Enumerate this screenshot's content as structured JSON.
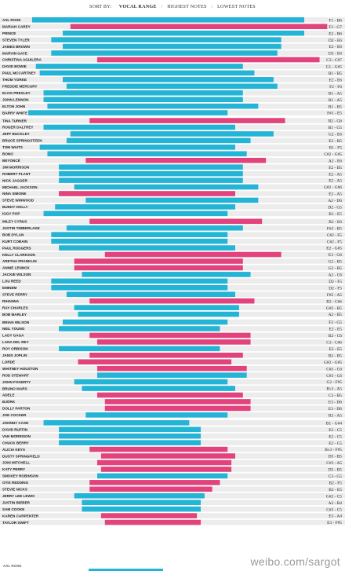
{
  "sort_bar": {
    "prefix": "SORT BY:",
    "options": [
      "VOCAL RANGE",
      "HIGHEST NOTES",
      "LOWEST NOTES"
    ],
    "active": "VOCAL RANGE"
  },
  "colors": {
    "male": "#23b4d6",
    "female": "#e2437c",
    "stripe": "#ececec"
  },
  "watermark": "weibo.com/sargot",
  "footnote": "AXL ROSE",
  "chart_data": {
    "type": "bar",
    "orientation": "horizontal-range",
    "note_axis": [
      "A1",
      "B1",
      "C2",
      "D2",
      "E2",
      "F2",
      "G2",
      "A2",
      "B2",
      "C3",
      "D3",
      "E3",
      "F3",
      "G3",
      "A3",
      "B3",
      "C4",
      "D4",
      "E4",
      "F4",
      "G4",
      "A4",
      "B4",
      "C5",
      "D5",
      "E5",
      "F5",
      "G5",
      "A5",
      "B5",
      "C6",
      "D6",
      "E6",
      "F6",
      "G6",
      "A6",
      "B6"
    ],
    "singers": [
      {
        "name": "AXL ROSE",
        "range": "F1 - B6",
        "low": 0.5,
        "high": 36,
        "sex": "m"
      },
      {
        "name": "MARIAH CAREY",
        "range": "F2 - G7",
        "low": 5.5,
        "high": 39,
        "sex": "f"
      },
      {
        "name": "PRINCE",
        "range": "E2 - B6",
        "low": 4.5,
        "high": 36,
        "sex": "m"
      },
      {
        "name": "STEVEN TYLER",
        "range": "D2 - E6",
        "low": 3,
        "high": 33,
        "sex": "m"
      },
      {
        "name": "JAMES BROWN",
        "range": "E2 - E6",
        "low": 4.5,
        "high": 33,
        "sex": "m"
      },
      {
        "name": "MARVIN GAYE",
        "range": "D2 - E6",
        "low": 3,
        "high": 32.5,
        "sex": "m"
      },
      {
        "name": "CHRISTINA AGUILERA",
        "range": "C3 - C#7",
        "low": 9,
        "high": 38,
        "sex": "f"
      },
      {
        "name": "DAVID BOWIE",
        "range": "G1 - G#5",
        "low": 1,
        "high": 28,
        "sex": "m"
      },
      {
        "name": "PAUL MCCARTNEY",
        "range": "B1 - B5",
        "low": 1.5,
        "high": 29.5,
        "sex": "m"
      },
      {
        "name": "THOM YORKE",
        "range": "E2 - E6",
        "low": 4.5,
        "high": 32,
        "sex": "m"
      },
      {
        "name": "FREDDIE MERCURY",
        "range": "F2 - F6",
        "low": 5,
        "high": 32.5,
        "sex": "m"
      },
      {
        "name": "ELVIS PRESLEY",
        "range": "B1 - A5",
        "low": 2,
        "high": 28,
        "sex": "m"
      },
      {
        "name": "JOHN LENNON",
        "range": "B1 - A5",
        "low": 2,
        "high": 28,
        "sex": "m"
      },
      {
        "name": "ELTON JOHN",
        "range": "B1 - B5",
        "low": 2.5,
        "high": 30,
        "sex": "m"
      },
      {
        "name": "BARRY WHITE",
        "range": "F#1 - E5",
        "low": 0,
        "high": 26,
        "sex": "m"
      },
      {
        "name": "TINA TURNER",
        "range": "B2 - G6",
        "low": 8,
        "high": 33.5,
        "sex": "f"
      },
      {
        "name": "ROGER DALTREY",
        "range": "B1 - G5",
        "low": 2,
        "high": 27,
        "sex": "m"
      },
      {
        "name": "JEFF BUCKLEY",
        "range": "G2 - E6",
        "low": 5.5,
        "high": 32,
        "sex": "m"
      },
      {
        "name": "BRUCE SPRINGSTEEN",
        "range": "E2 - B5",
        "low": 5,
        "high": 29,
        "sex": "m"
      },
      {
        "name": "TOM WAITS",
        "range": "B1 - F5",
        "low": 1.5,
        "high": 27,
        "sex": "m"
      },
      {
        "name": "BONO",
        "range": "C#2 - G#5",
        "low": 2.5,
        "high": 28.5,
        "sex": "m"
      },
      {
        "name": "BEYONCÉ",
        "range": "A2 - E6",
        "low": 7.5,
        "high": 31,
        "sex": "f"
      },
      {
        "name": "JIM MORRISON",
        "range": "E2 - B5",
        "low": 4,
        "high": 28,
        "sex": "m"
      },
      {
        "name": "ROBERT PLANT",
        "range": "E2 - A5",
        "low": 4,
        "high": 28,
        "sex": "m"
      },
      {
        "name": "NICK JAGGER",
        "range": "E2 - A5",
        "low": 4,
        "high": 28,
        "sex": "m"
      },
      {
        "name": "MICHAEL JACKSON",
        "range": "G#2 - G#6",
        "low": 6,
        "high": 30,
        "sex": "m"
      },
      {
        "name": "NINA SIMONE",
        "range": "E2 - A5",
        "low": 4,
        "high": 27,
        "sex": "f"
      },
      {
        "name": "STEVE WINWOOD",
        "range": "A2 - D6",
        "low": 7.5,
        "high": 30,
        "sex": "m"
      },
      {
        "name": "BUDDY HOLLY",
        "range": "D2 - G5",
        "low": 3.5,
        "high": 27,
        "sex": "m"
      },
      {
        "name": "IGGY POP",
        "range": "B1 - E5",
        "low": 2,
        "high": 26,
        "sex": "m"
      },
      {
        "name": "MILEY CYRUS",
        "range": "B2 - E6",
        "low": 8,
        "high": 30.5,
        "sex": "f"
      },
      {
        "name": "JUSTIN TIMBERLAKE",
        "range": "F#3 - B5",
        "low": 5,
        "high": 28,
        "sex": "m"
      },
      {
        "name": "BOB DYLAN",
        "range": "C#2 - F5",
        "low": 3,
        "high": 26,
        "sex": "m"
      },
      {
        "name": "KURT COBAIN",
        "range": "C#2 - F5",
        "low": 3,
        "high": 26,
        "sex": "m"
      },
      {
        "name": "PAUL RODGERS",
        "range": "E2 - G#5",
        "low": 4,
        "high": 27,
        "sex": "m"
      },
      {
        "name": "KELLY CLARKSON",
        "range": "E3 - G6",
        "low": 10,
        "high": 33,
        "sex": "f"
      },
      {
        "name": "ARETHA FRANKLIN",
        "range": "G2 - B5",
        "low": 6,
        "high": 28,
        "sex": "f"
      },
      {
        "name": "ANNIE LENNOX",
        "range": "G2 - B5",
        "low": 6,
        "high": 28,
        "sex": "f"
      },
      {
        "name": "JACKIE WILSON",
        "range": "A2 - C6",
        "low": 7,
        "high": 29,
        "sex": "m"
      },
      {
        "name": "LOU REED",
        "range": "D2 - F5",
        "low": 3,
        "high": 26,
        "sex": "m"
      },
      {
        "name": "EMINEM",
        "range": "D2 - F5",
        "low": 3,
        "high": 26,
        "sex": "m"
      },
      {
        "name": "STEVE PERRY",
        "range": "F#2 - A5",
        "low": 5,
        "high": 27,
        "sex": "m"
      },
      {
        "name": "RIHANNA",
        "range": "B2 - C#6",
        "low": 8,
        "high": 29.5,
        "sex": "f"
      },
      {
        "name": "RAY CHARLES",
        "range": "G#2 - B5",
        "low": 6,
        "high": 27.5,
        "sex": "m"
      },
      {
        "name": "BOB MARLEY",
        "range": "A2 - B5",
        "low": 6.5,
        "high": 27.5,
        "sex": "m"
      },
      {
        "name": "BRIAN WILSON",
        "range": "F2 - G5",
        "low": 4.5,
        "high": 26,
        "sex": "m"
      },
      {
        "name": "NEIL YOUNG",
        "range": "E2 - E5",
        "low": 4,
        "high": 25,
        "sex": "m"
      },
      {
        "name": "LADY GAGA",
        "range": "B2 - C6",
        "low": 8,
        "high": 29,
        "sex": "f"
      },
      {
        "name": "LANA DEL REY",
        "range": "C3 - C#6",
        "low": 9,
        "high": 29,
        "sex": "f"
      },
      {
        "name": "ROY ORBISON",
        "range": "E2 - E5",
        "low": 4,
        "high": 25,
        "sex": "m"
      },
      {
        "name": "JANIS JOPLIN",
        "range": "B2 - B5",
        "low": 8,
        "high": 28,
        "sex": "f"
      },
      {
        "name": "LORDE",
        "range": "G#2 - G#5",
        "low": 6.5,
        "high": 26.5,
        "sex": "f"
      },
      {
        "name": "WHITNEY HOUSTON",
        "range": "C#3 - C6",
        "low": 9,
        "high": 28.5,
        "sex": "f"
      },
      {
        "name": "ROD STEWART",
        "range": "C#3 - C6",
        "low": 9,
        "high": 28.5,
        "sex": "m"
      },
      {
        "name": "JOHN FOGERTY",
        "range": "G2 - F#5",
        "low": 6,
        "high": 26,
        "sex": "m"
      },
      {
        "name": "BRUNO MARS",
        "range": "B♭3 - A5",
        "low": 7,
        "high": 27,
        "sex": "m"
      },
      {
        "name": "ADELE",
        "range": "C3 - B5",
        "low": 9,
        "high": 28,
        "sex": "f"
      },
      {
        "name": "BJÖRK",
        "range": "E3 - D6",
        "low": 10,
        "high": 29,
        "sex": "f"
      },
      {
        "name": "DOLLY PARTON",
        "range": "E3 - D6",
        "low": 10,
        "high": 29,
        "sex": "f"
      },
      {
        "name": "JOE COCKER",
        "range": "B2 - A5",
        "low": 7.5,
        "high": 26,
        "sex": "m"
      },
      {
        "name": "JOHNNY CASH",
        "range": "B1 - G#4",
        "low": 2,
        "high": 21,
        "sex": "m"
      },
      {
        "name": "DAVID RUFFIN",
        "range": "E2 - C5",
        "low": 4,
        "high": 22.5,
        "sex": "m"
      },
      {
        "name": "VAN MORRISON",
        "range": "E2 - C5",
        "low": 4,
        "high": 22.5,
        "sex": "m"
      },
      {
        "name": "CHUCK BERRY",
        "range": "E2 - C5",
        "low": 4,
        "high": 22.5,
        "sex": "m"
      },
      {
        "name": "ALICIA KEYS",
        "range": "B♭3 - F#5",
        "low": 8,
        "high": 26,
        "sex": "f"
      },
      {
        "name": "DUSTY SPRINGFIELD",
        "range": "D3 - B5",
        "low": 9.5,
        "high": 27,
        "sex": "f"
      },
      {
        "name": "JONI MITCHELL",
        "range": "C#3 - A5",
        "low": 9,
        "high": 26.5,
        "sex": "f"
      },
      {
        "name": "KATY PERRY",
        "range": "D3 - B5",
        "low": 9.5,
        "high": 26.5,
        "sex": "f"
      },
      {
        "name": "SMOKEY ROBINSON",
        "range": "C3 - G5",
        "low": 9,
        "high": 26,
        "sex": "m"
      },
      {
        "name": "OTIS REDDING",
        "range": "B2 - F5",
        "low": 8,
        "high": 25,
        "sex": "f"
      },
      {
        "name": "STEVIE NICKS",
        "range": "B2 - E5",
        "low": 8,
        "high": 24,
        "sex": "f"
      },
      {
        "name": "JERRY LEE LEWIS",
        "range": "G#2 - C5",
        "low": 6,
        "high": 23,
        "sex": "m"
      },
      {
        "name": "JUSTIN BIEBER",
        "range": "A2 - B4",
        "low": 7,
        "high": 22.5,
        "sex": "m"
      },
      {
        "name": "SAM COOKE",
        "range": "C#3 - C5",
        "low": 7,
        "high": 22.5,
        "sex": "m"
      },
      {
        "name": "KAREN CARPENTER",
        "range": "E3 - A4",
        "low": 9.5,
        "high": 22,
        "sex": "f"
      },
      {
        "name": "TAYLOR SWIFT",
        "range": "E3 - F#5",
        "low": 10,
        "high": 22.5,
        "sex": "f"
      }
    ]
  }
}
